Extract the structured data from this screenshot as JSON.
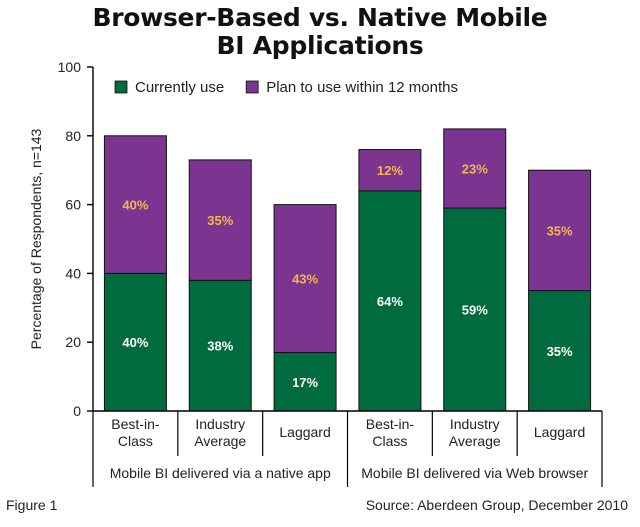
{
  "chart_data": {
    "type": "bar",
    "stacked": true,
    "title": "Browser-Based vs. Native Mobile BI Applications",
    "ylabel": "Percentage of Respondents, n=143",
    "ylim": [
      0,
      100
    ],
    "yticks": [
      0,
      20,
      40,
      60,
      80,
      100
    ],
    "categories": [
      "Best-in-Class",
      "Industry Average",
      "Laggard",
      "Best-in-Class",
      "Industry Average",
      "Laggard"
    ],
    "category_label_lines": [
      [
        "Best-in-",
        "Class"
      ],
      [
        "Industry",
        "Average"
      ],
      [
        "Laggard"
      ],
      [
        "Best-in-",
        "Class"
      ],
      [
        "Industry",
        "Average"
      ],
      [
        "Laggard"
      ]
    ],
    "groups": [
      {
        "label": "Mobile BI delivered via a native app",
        "categories": [
          0,
          1,
          2
        ]
      },
      {
        "label": "Mobile BI delivered via Web browser",
        "categories": [
          3,
          4,
          5
        ]
      }
    ],
    "series": [
      {
        "name": "Currently use",
        "values": [
          40,
          38,
          17,
          64,
          59,
          35
        ],
        "labels": [
          "40%",
          "38%",
          "17%",
          "64%",
          "59%",
          "35%"
        ],
        "color": "#006b3f",
        "label_color": "#ffffff"
      },
      {
        "name": "Plan to use within 12 months",
        "values": [
          40,
          35,
          43,
          12,
          23,
          35
        ],
        "labels": [
          "40%",
          "35%",
          "43%",
          "12%",
          "23%",
          "35%"
        ],
        "color": "#7b3590",
        "label_color": "#f5b651"
      }
    ],
    "legend_position": "top-left",
    "grid": false
  },
  "title_lines": [
    "Browser-Based vs. Native Mobile",
    "BI Applications"
  ],
  "footer": {
    "figure": "Figure 1",
    "source": "Source: Aberdeen Group, December 2010"
  }
}
